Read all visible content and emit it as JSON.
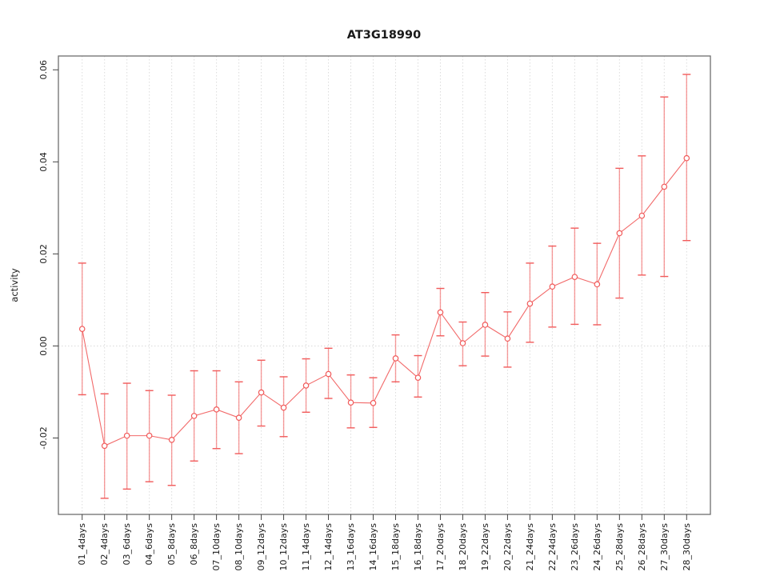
{
  "chart_data": {
    "type": "line",
    "title": "AT3G18990",
    "xlabel": "",
    "ylabel": "activity",
    "legend": "none",
    "grid": "vertical dotted gridlines at each category; dotted horizontal line at y=0",
    "categories": [
      "01_4days",
      "02_4days",
      "03_6days",
      "04_6days",
      "05_8days",
      "06_8days",
      "07_10days",
      "08_10days",
      "09_12days",
      "10_12days",
      "11_14days",
      "12_14days",
      "13_16days",
      "14_16days",
      "15_18days",
      "16_18days",
      "17_20days",
      "18_20days",
      "19_22days",
      "20_22days",
      "21_24days",
      "22_24days",
      "23_26days",
      "24_26days",
      "25_28days",
      "26_28days",
      "27_30days",
      "28_30days"
    ],
    "series": [
      {
        "name": "activity",
        "marker": "open-circle",
        "values": [
          0.0037,
          -0.0217,
          -0.0195,
          -0.0195,
          -0.0204,
          -0.0152,
          -0.0138,
          -0.0156,
          -0.0101,
          -0.0134,
          -0.0086,
          -0.0061,
          -0.0123,
          -0.0124,
          -0.0027,
          -0.0069,
          0.0073,
          0.0006,
          0.0046,
          0.0016,
          0.0092,
          0.0129,
          0.015,
          0.0134,
          0.0245,
          0.0283,
          0.0346,
          0.0408
        ],
        "error_upper": [
          0.018,
          -0.0104,
          -0.0081,
          -0.0097,
          -0.0107,
          -0.0054,
          -0.0054,
          -0.0078,
          -0.0031,
          -0.0067,
          -0.0028,
          -0.0005,
          -0.0063,
          -0.0069,
          0.0024,
          -0.0021,
          0.0125,
          0.0052,
          0.0116,
          0.0074,
          0.018,
          0.0217,
          0.0256,
          0.0223,
          0.0386,
          0.0413,
          0.0541,
          0.059
        ],
        "error_lower": [
          -0.0106,
          -0.0331,
          -0.0311,
          -0.0295,
          -0.0303,
          -0.025,
          -0.0223,
          -0.0234,
          -0.0174,
          -0.0197,
          -0.0144,
          -0.0114,
          -0.0178,
          -0.0177,
          -0.0078,
          -0.0111,
          0.0022,
          -0.0043,
          -0.0022,
          -0.0046,
          0.0008,
          0.0041,
          0.0047,
          0.0046,
          0.0104,
          0.0154,
          0.0151,
          0.0229
        ]
      }
    ],
    "yticks": [
      -0.02,
      0.0,
      0.02,
      0.04,
      0.06
    ],
    "ytick_labels": [
      "-0.02",
      "0.00",
      "0.02",
      "0.04",
      "0.06"
    ],
    "ylim": [
      -0.0366,
      0.063
    ],
    "colors": {
      "series": "#f15a5a",
      "errorbar": "#f47b7b",
      "gridline": "#dcdcdc",
      "zero_line": "#d8d8d8",
      "box": "#6e6e6e",
      "tick": "#444444",
      "text": "#1a1a1a"
    }
  }
}
